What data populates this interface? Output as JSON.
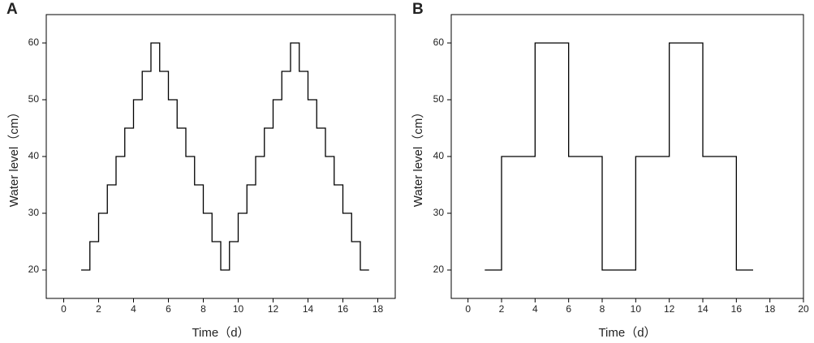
{
  "chart_data": [
    {
      "type": "line",
      "panel": "A",
      "step": "post",
      "color": "#000000",
      "xlabel": "Time（d）",
      "ylabel": "Water level（cm）",
      "x": [
        1,
        1.5,
        2,
        2.5,
        3,
        3.5,
        4,
        4.5,
        5,
        5.5,
        6,
        6.5,
        7,
        7.5,
        8,
        8.5,
        9,
        9.5,
        10,
        10.5,
        11,
        11.5,
        12,
        12.5,
        13,
        13.5,
        14,
        14.5,
        15,
        15.5,
        16,
        16.5,
        17,
        17.5
      ],
      "values": [
        20,
        25,
        30,
        35,
        40,
        45,
        50,
        55,
        60,
        55,
        50,
        45,
        40,
        35,
        30,
        25,
        20,
        25,
        30,
        35,
        40,
        45,
        50,
        55,
        60,
        55,
        50,
        45,
        40,
        35,
        30,
        25,
        20,
        20
      ],
      "xlim": [
        -1,
        19
      ],
      "xticks": [
        0,
        2,
        4,
        6,
        8,
        10,
        12,
        14,
        16,
        18
      ],
      "ylim": [
        15,
        65
      ],
      "yticks": [
        20,
        30,
        40,
        50,
        60
      ]
    },
    {
      "type": "line",
      "panel": "B",
      "step": "post",
      "color": "#000000",
      "xlabel": "Time（d）",
      "ylabel": "Water level（cm）",
      "x": [
        1,
        2,
        4,
        6,
        8,
        10,
        12,
        14,
        16,
        17
      ],
      "values": [
        20,
        40,
        60,
        40,
        20,
        40,
        60,
        40,
        20,
        20
      ],
      "xlim": [
        -1,
        20
      ],
      "xticks": [
        0,
        2,
        4,
        6,
        8,
        10,
        12,
        14,
        16,
        18,
        20
      ],
      "ylim": [
        15,
        65
      ],
      "yticks": [
        20,
        30,
        40,
        50,
        60
      ]
    }
  ]
}
